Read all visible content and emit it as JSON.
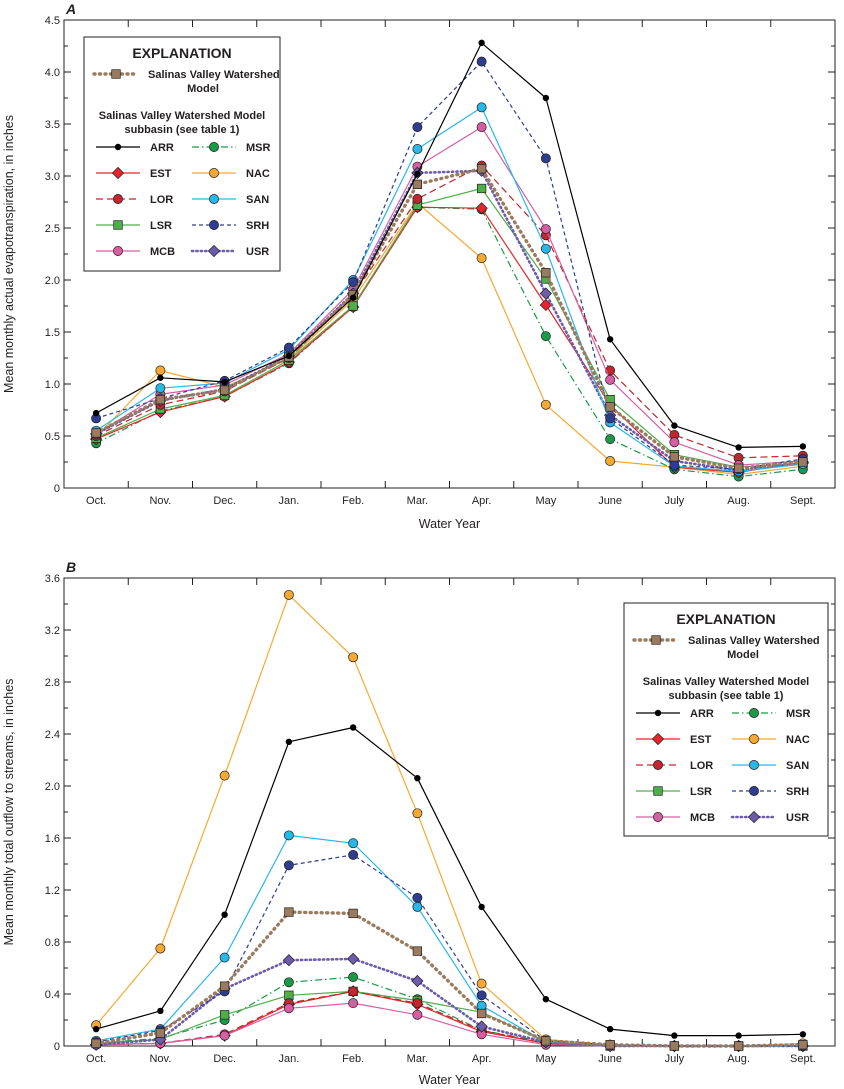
{
  "chart_data": [
    {
      "type": "line",
      "panel": "A",
      "title": "",
      "xlabel": "Water Year",
      "ylabel": "Mean monthly actual evapotranspiration, in inches",
      "ylim": [
        0,
        4.5
      ],
      "yticks": [
        0,
        0.5,
        1.0,
        1.5,
        2.0,
        2.5,
        3.0,
        3.5,
        4.0,
        4.5
      ],
      "ytick_labels": [
        "0",
        "0.5",
        "1.0",
        "1.5",
        "2.0",
        "2.5",
        "3.0",
        "3.5",
        "4.0",
        "4.5"
      ],
      "categories": [
        "Oct.",
        "Nov.",
        "Dec.",
        "Jan.",
        "Feb.",
        "Mar.",
        "Apr.",
        "May",
        "June",
        "July",
        "Aug.",
        "Sept."
      ],
      "legend": {
        "title": "EXPLANATION",
        "model_label_1": "Salinas Valley Watershed",
        "model_label_2": "Model",
        "subbasin_head_1": "Salinas Valley Watershed Model",
        "subbasin_head_2": "subbasin (see table 1)",
        "placement": "top-left"
      },
      "series": [
        {
          "name": "ARR",
          "values": [
            0.72,
            1.06,
            1.02,
            1.27,
            1.83,
            3.02,
            4.28,
            3.75,
            1.43,
            0.6,
            0.39,
            0.4
          ]
        },
        {
          "name": "EST",
          "values": [
            0.47,
            0.73,
            0.88,
            1.21,
            1.74,
            2.7,
            2.69,
            1.76,
            0.8,
            0.2,
            0.15,
            0.25
          ]
        },
        {
          "name": "LOR",
          "values": [
            0.5,
            0.8,
            0.93,
            1.25,
            1.85,
            2.78,
            3.1,
            2.43,
            1.13,
            0.51,
            0.29,
            0.31
          ]
        },
        {
          "name": "LSR",
          "values": [
            0.48,
            0.76,
            0.89,
            1.23,
            1.75,
            2.72,
            2.88,
            2.01,
            0.85,
            0.32,
            0.2,
            0.24
          ]
        },
        {
          "name": "MCB",
          "values": [
            0.52,
            0.9,
            0.99,
            1.29,
            1.91,
            3.09,
            3.47,
            2.49,
            1.04,
            0.44,
            0.22,
            0.26
          ]
        },
        {
          "name": "MSR",
          "values": [
            0.43,
            0.74,
            0.88,
            1.2,
            1.74,
            2.7,
            2.68,
            1.46,
            0.47,
            0.18,
            0.11,
            0.18
          ]
        },
        {
          "name": "NAC",
          "values": [
            0.49,
            1.13,
            0.97,
            1.24,
            1.81,
            2.74,
            2.21,
            0.8,
            0.26,
            0.2,
            0.13,
            0.21
          ]
        },
        {
          "name": "SAN",
          "values": [
            0.55,
            0.96,
            1.01,
            1.33,
            2.0,
            3.26,
            3.66,
            2.3,
            0.63,
            0.21,
            0.16,
            0.23
          ]
        },
        {
          "name": "SRH",
          "values": [
            0.67,
            0.86,
            1.03,
            1.35,
            1.98,
            3.47,
            4.1,
            3.17,
            0.67,
            0.22,
            0.18,
            0.28
          ]
        },
        {
          "name": "USR",
          "values": [
            0.52,
            0.84,
            0.95,
            1.27,
            1.87,
            3.03,
            3.05,
            1.87,
            0.7,
            0.26,
            0.17,
            0.24
          ]
        },
        {
          "name": "SVWM",
          "values": [
            0.53,
            0.85,
            0.94,
            1.26,
            1.86,
            2.92,
            3.07,
            2.07,
            0.78,
            0.3,
            0.19,
            0.25
          ]
        }
      ]
    },
    {
      "type": "line",
      "panel": "B",
      "title": "",
      "xlabel": "Water Year",
      "ylabel": "Mean monthly total outflow to streams, in inches",
      "ylim": [
        0,
        3.6
      ],
      "yticks": [
        0,
        0.4,
        0.8,
        1.2,
        1.6,
        2.0,
        2.4,
        2.8,
        3.2,
        3.6
      ],
      "ytick_labels": [
        "0",
        "0.4",
        "0.8",
        "1.2",
        "1.6",
        "2.0",
        "2.4",
        "2.8",
        "3.2",
        "3.6"
      ],
      "categories": [
        "Oct.",
        "Nov.",
        "Dec.",
        "Jan.",
        "Feb.",
        "Mar.",
        "Apr.",
        "May",
        "June",
        "July",
        "Aug.",
        "Sept."
      ],
      "legend": {
        "title": "EXPLANATION",
        "model_label_1": "Salinas Valley Watershed",
        "model_label_2": "Model",
        "subbasin_head_1": "Salinas Valley Watershed Model",
        "subbasin_head_2": "subbasin (see table 1)",
        "placement": "top-right"
      },
      "series": [
        {
          "name": "ARR",
          "values": [
            0.13,
            0.27,
            1.01,
            2.34,
            2.45,
            2.06,
            1.07,
            0.36,
            0.13,
            0.08,
            0.08,
            0.09
          ]
        },
        {
          "name": "EST",
          "values": [
            0.01,
            0.02,
            0.08,
            0.32,
            0.42,
            0.32,
            0.11,
            0.02,
            0.0,
            0.0,
            0.0,
            0.0
          ]
        },
        {
          "name": "LOR",
          "values": [
            0.01,
            0.02,
            0.09,
            0.33,
            0.42,
            0.33,
            0.12,
            0.02,
            0.0,
            0.0,
            0.0,
            0.0
          ]
        },
        {
          "name": "LSR",
          "values": [
            0.02,
            0.05,
            0.24,
            0.39,
            0.42,
            0.35,
            0.26,
            0.03,
            0.0,
            0.0,
            0.0,
            0.0
          ]
        },
        {
          "name": "MCB",
          "values": [
            0.01,
            0.02,
            0.08,
            0.29,
            0.33,
            0.24,
            0.09,
            0.01,
            0.0,
            0.0,
            0.0,
            0.0
          ]
        },
        {
          "name": "MSR",
          "values": [
            0.02,
            0.06,
            0.2,
            0.49,
            0.53,
            0.36,
            0.12,
            0.03,
            0.01,
            0.0,
            0.0,
            0.0
          ]
        },
        {
          "name": "NAC",
          "values": [
            0.16,
            0.75,
            2.08,
            3.47,
            2.99,
            1.79,
            0.48,
            0.05,
            0.01,
            0.0,
            0.0,
            0.02
          ]
        },
        {
          "name": "SAN",
          "values": [
            0.04,
            0.13,
            0.68,
            1.62,
            1.56,
            1.07,
            0.31,
            0.03,
            0.01,
            0.0,
            0.0,
            0.0
          ]
        },
        {
          "name": "SRH",
          "values": [
            0.03,
            0.12,
            0.42,
            1.39,
            1.47,
            1.14,
            0.39,
            0.04,
            0.01,
            0.0,
            0.0,
            0.0
          ]
        },
        {
          "name": "USR",
          "values": [
            0.01,
            0.05,
            0.44,
            0.66,
            0.67,
            0.5,
            0.15,
            0.03,
            0.0,
            0.0,
            0.0,
            0.0
          ]
        },
        {
          "name": "SVWM",
          "values": [
            0.02,
            0.1,
            0.46,
            1.03,
            1.02,
            0.73,
            0.25,
            0.04,
            0.01,
            0.0,
            0.0,
            0.01
          ]
        }
      ]
    }
  ],
  "series_styles": {
    "ARR": {
      "color": "#000000",
      "marker": "dot",
      "dash": "solid"
    },
    "EST": {
      "color": "#e8252b",
      "marker": "diamond",
      "dash": "solid"
    },
    "LOR": {
      "color": "#c1272d",
      "marker": "circle",
      "dash": "longdash"
    },
    "LSR": {
      "color": "#4daf4a",
      "marker": "square",
      "dash": "solid"
    },
    "MCB": {
      "color": "#d55fa3",
      "marker": "circle",
      "dash": "solid"
    },
    "MSR": {
      "color": "#1a9a48",
      "marker": "circle",
      "dash": "dashdot"
    },
    "NAC": {
      "color": "#f7a833",
      "marker": "circle",
      "dash": "solid"
    },
    "SAN": {
      "color": "#29b6e8",
      "marker": "circle",
      "dash": "solid"
    },
    "SRH": {
      "color": "#2e3d8f",
      "marker": "circle",
      "dash": "shortdash"
    },
    "USR": {
      "color": "#6d5bab",
      "marker": "diamond",
      "dash": "dotted"
    },
    "SVWM": {
      "color": "#9a7b5f",
      "marker": "square",
      "dash": "thickdot"
    }
  },
  "legend_order": [
    "ARR",
    "MSR",
    "EST",
    "NAC",
    "LOR",
    "SAN",
    "LSR",
    "SRH",
    "MCB",
    "USR"
  ],
  "panel_letters": [
    "A",
    "B"
  ]
}
